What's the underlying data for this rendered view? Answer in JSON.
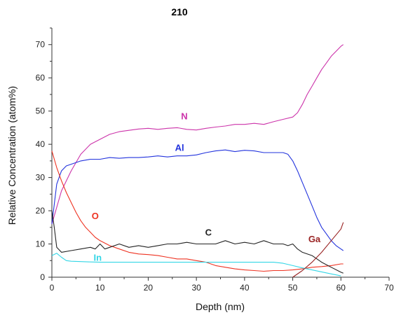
{
  "chart_data": {
    "type": "line",
    "title": "210",
    "xlabel": "Depth (nm)",
    "ylabel": "Relative Concentration (atom%)",
    "xlim": [
      0,
      70
    ],
    "ylim": [
      0,
      75
    ],
    "xticks": [
      0,
      10,
      20,
      30,
      40,
      50,
      60,
      70
    ],
    "yticks": [
      0,
      10,
      20,
      30,
      40,
      50,
      60,
      70
    ],
    "grid": false,
    "legend": "inline labels",
    "series": [
      {
        "name": "N",
        "color": "#cc33aa",
        "label_pos": [
          27.5,
          47.5
        ],
        "x": [
          0,
          2,
          4,
          6,
          8,
          10,
          12,
          14,
          16,
          18,
          20,
          22,
          24,
          26,
          28,
          30,
          32,
          34,
          36,
          38,
          40,
          42,
          44,
          46,
          48,
          50,
          51,
          52,
          53,
          54,
          55,
          56,
          57,
          58,
          59,
          60,
          60.5
        ],
        "y": [
          16,
          26,
          32,
          37,
          40,
          41.5,
          43,
          43.8,
          44.2,
          44.6,
          44.8,
          44.5,
          44.8,
          45,
          44.5,
          44.3,
          44.8,
          45.2,
          45.5,
          46,
          46,
          46.3,
          46,
          46.8,
          47.5,
          48.2,
          49.5,
          52,
          55,
          57.5,
          60,
          62.5,
          64.5,
          66.5,
          68,
          69.5,
          70
        ]
      },
      {
        "name": "Al",
        "color": "#2233dd",
        "label_pos": [
          26.5,
          38
        ],
        "x": [
          0,
          1,
          2,
          3,
          4,
          6,
          8,
          10,
          12,
          14,
          16,
          18,
          20,
          22,
          24,
          26,
          28,
          30,
          32,
          34,
          36,
          38,
          40,
          42,
          44,
          46,
          48,
          49,
          50,
          51,
          52,
          53,
          54,
          55,
          56,
          57,
          58,
          59,
          60,
          60.5
        ],
        "y": [
          16,
          28,
          32,
          33.5,
          34,
          35,
          35.5,
          35.5,
          36,
          35.8,
          36,
          36,
          36.2,
          36.5,
          36.2,
          36.5,
          36.5,
          36.8,
          37.5,
          38,
          38.3,
          37.8,
          38.2,
          38,
          37.5,
          37.5,
          37.5,
          37,
          35,
          32,
          28.5,
          25,
          21.5,
          18,
          15,
          13,
          11,
          9.5,
          8.5,
          8
        ]
      },
      {
        "name": "O",
        "color": "#ee3322",
        "label_pos": [
          9,
          17.5
        ],
        "x": [
          0,
          1,
          2,
          3,
          4,
          5,
          6,
          7,
          8,
          9,
          10,
          12,
          14,
          16,
          18,
          20,
          22,
          24,
          26,
          28,
          30,
          32,
          34,
          36,
          38,
          40,
          42,
          44,
          46,
          48,
          50,
          52,
          54,
          56,
          58,
          60,
          60.5
        ],
        "y": [
          38,
          33,
          29,
          25.5,
          22.5,
          19.5,
          17,
          15,
          13.5,
          12,
          11,
          9.5,
          8.5,
          7.5,
          7,
          6.8,
          6.5,
          6,
          5.5,
          5.5,
          5,
          4.5,
          3.5,
          3,
          2.5,
          2.2,
          2,
          1.8,
          2,
          2,
          2.2,
          2.5,
          3,
          3.2,
          3.5,
          4,
          4
        ]
      },
      {
        "name": "C",
        "color": "#222222",
        "label_pos": [
          32.5,
          12.5
        ],
        "x": [
          0,
          0.5,
          1,
          2,
          4,
          6,
          8,
          9,
          10,
          11,
          12,
          14,
          16,
          18,
          20,
          22,
          24,
          26,
          28,
          30,
          32,
          34,
          36,
          38,
          40,
          42,
          44,
          46,
          48,
          49,
          50,
          51,
          52,
          54,
          56,
          58,
          60,
          60.5
        ],
        "y": [
          20,
          15,
          9,
          7.5,
          8,
          8.5,
          9,
          8.5,
          10,
          8.5,
          9,
          10,
          9,
          9.5,
          9,
          9.5,
          10,
          10,
          10.5,
          10,
          10,
          10,
          11,
          10,
          10.5,
          10,
          11,
          10,
          10,
          9.5,
          10,
          8.5,
          7.5,
          6.5,
          4.5,
          3,
          1.5,
          1.2
        ]
      },
      {
        "name": "In",
        "color": "#33d6e6",
        "label_pos": [
          9.5,
          5
        ],
        "x": [
          0,
          1,
          2,
          3,
          4,
          6,
          8,
          10,
          14,
          18,
          22,
          26,
          30,
          34,
          38,
          42,
          46,
          48,
          50,
          52,
          54,
          56,
          58,
          60
        ],
        "y": [
          6.5,
          7.2,
          6,
          5,
          4.8,
          4.7,
          4.6,
          4.5,
          4.5,
          4.5,
          4.5,
          4.5,
          4.5,
          4.5,
          4.5,
          4.5,
          4.5,
          4.2,
          3.5,
          2.8,
          2.2,
          1.6,
          1,
          0.4
        ]
      },
      {
        "name": "Ga",
        "color": "#992222",
        "label_pos": [
          54.5,
          10.5
        ],
        "x": [
          50,
          52,
          54,
          56,
          58,
          60,
          60.5
        ],
        "y": [
          0,
          2,
          4.5,
          7.5,
          11,
          14.5,
          16.5
        ]
      }
    ]
  }
}
